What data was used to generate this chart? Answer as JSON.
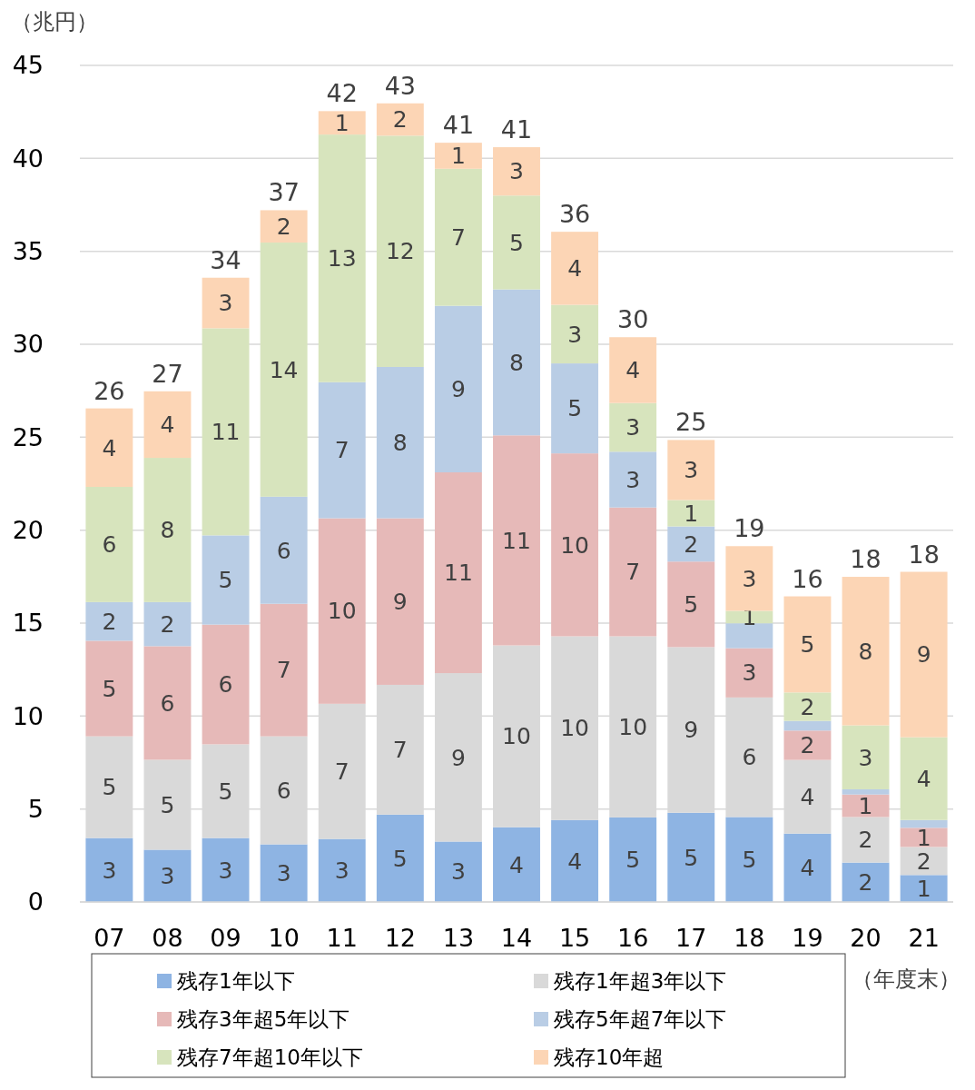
{
  "chart_data": {
    "type": "bar",
    "stacked": true,
    "ylabel": "（兆円）",
    "xlabel": "（年度末）",
    "categories": [
      "07",
      "08",
      "09",
      "10",
      "11",
      "12",
      "13",
      "14",
      "15",
      "16",
      "17",
      "18",
      "19",
      "20",
      "21"
    ],
    "ylim": [
      0,
      45
    ],
    "yticks": [
      0,
      5,
      10,
      15,
      20,
      25,
      30,
      35,
      40,
      45
    ],
    "grid": "y",
    "legend": "bottom",
    "series": [
      {
        "name": "残存1年以下",
        "color": "#8eb4e3",
        "values": [
          3.44,
          2.81,
          3.44,
          3.1,
          3.39,
          4.7,
          3.25,
          4.02,
          4.41,
          4.55,
          4.8,
          4.57,
          3.68,
          2.12,
          1.45
        ],
        "value_labels": [
          "3",
          "3",
          "3",
          "3",
          "3",
          "5",
          "3",
          "4",
          "4",
          "5",
          "5",
          "5",
          "4",
          "2",
          "1"
        ]
      },
      {
        "name": "残存1年超3年以下",
        "color": "#d9d9d9",
        "values": [
          5.47,
          4.84,
          5.04,
          5.81,
          7.27,
          6.98,
          9.06,
          9.78,
          9.88,
          9.74,
          8.91,
          6.43,
          3.96,
          2.45,
          1.51
        ],
        "value_labels": [
          "5",
          "5",
          "5",
          "6",
          "7",
          "7",
          "9",
          "10",
          "10",
          "10",
          "9",
          "6",
          "4",
          "2",
          "2"
        ]
      },
      {
        "name": "残存3年超5年以下",
        "color": "#e6b9b8",
        "values": [
          5.14,
          6.11,
          6.44,
          7.13,
          9.98,
          8.96,
          10.8,
          11.3,
          9.84,
          6.93,
          4.6,
          2.65,
          1.58,
          1.21,
          1.03
        ],
        "value_labels": [
          "5",
          "6",
          "6",
          "7",
          "10",
          "9",
          "11",
          "11",
          "10",
          "7",
          "5",
          "3",
          "2",
          "1",
          "1"
        ]
      },
      {
        "name": "残存5年超7年以下",
        "color": "#b9cde5",
        "values": [
          2.08,
          2.37,
          4.8,
          5.76,
          7.32,
          8.14,
          8.96,
          7.85,
          4.84,
          3.0,
          1.89,
          1.34,
          0.52,
          0.28,
          0.42
        ],
        "value_labels": [
          "2",
          "2",
          "5",
          "6",
          "7",
          "8",
          "9",
          "8",
          "5",
          "3",
          "2",
          null,
          null,
          null,
          null
        ]
      },
      {
        "name": "残存7年超10年以下",
        "color": "#d7e4bd",
        "values": [
          6.2,
          7.76,
          11.14,
          13.67,
          13.32,
          12.44,
          7.37,
          5.05,
          3.15,
          2.62,
          1.42,
          0.67,
          1.53,
          3.44,
          4.45
        ],
        "value_labels": [
          "6",
          "8",
          "11",
          "14",
          "13",
          "12",
          "7",
          "5",
          "3",
          "3",
          "1",
          "1",
          "2",
          "3",
          "4"
        ]
      },
      {
        "name": "残存10年超",
        "color": "#fcd5b5",
        "values": [
          4.22,
          3.58,
          2.72,
          1.74,
          1.26,
          1.74,
          1.4,
          2.6,
          3.93,
          3.54,
          3.23,
          3.48,
          5.17,
          7.99,
          8.9
        ],
        "value_labels": [
          "4",
          "4",
          "3",
          "2",
          "1",
          "2",
          "1",
          "3",
          "4",
          "4",
          "3",
          "3",
          "5",
          "8",
          "9"
        ]
      }
    ],
    "totals": [
      "26",
      "27",
      "34",
      "37",
      "42",
      "43",
      "41",
      "41",
      "36",
      "30",
      "25",
      "19",
      "16",
      "18",
      "18"
    ]
  }
}
